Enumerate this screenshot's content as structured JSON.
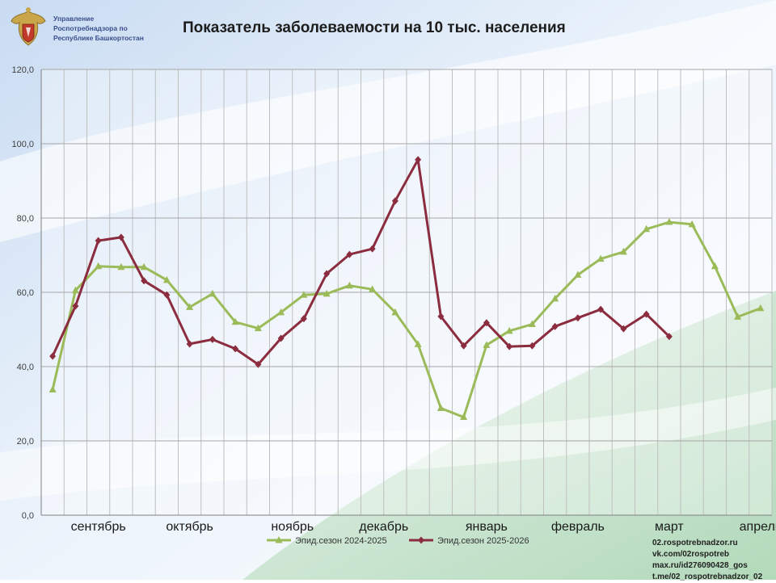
{
  "header": {
    "org_lines": [
      "Управление",
      "Роспотребнадзора по",
      "Республике Башкортостан"
    ],
    "title": "Показатель заболеваемости на 10 тыс. населения"
  },
  "footer_links": [
    "02.rospotrebnadzor.ru",
    "vk.com/02rospotreb",
    "max.ru/id276090428_gos",
    "t.me/02_rospotrebnadzor_02"
  ],
  "colors": {
    "series_2024": "#9bbb59",
    "series_2025": "#8b2c3f",
    "grid": "#bfbfbf"
  },
  "chart_data": {
    "type": "line",
    "title": "Показатель заболеваемости на 10 тыс. населения",
    "ylim": [
      0,
      120
    ],
    "y_ticks": [
      "0,0",
      "20,0",
      "40,0",
      "60,0",
      "80,0",
      "100,0",
      "120,0"
    ],
    "x_count": 32,
    "month_labels": [
      {
        "label": "сентябрь",
        "center": 2.5
      },
      {
        "label": "октябрь",
        "center": 6.5
      },
      {
        "label": "ноябрь",
        "center": 11
      },
      {
        "label": "декабрь",
        "center": 15
      },
      {
        "label": "январь",
        "center": 19.5
      },
      {
        "label": "февраль",
        "center": 23.5
      },
      {
        "label": "март",
        "center": 27.5
      },
      {
        "label": "апрель",
        "center": 31.5
      }
    ],
    "legend_placement": "bottom",
    "series": [
      {
        "name": "Эпид.сезон 2024-2025",
        "values": [
          33.8,
          60.5,
          67.0,
          66.8,
          66.8,
          63.3,
          56.0,
          59.6,
          52.0,
          50.3,
          54.6,
          59.3,
          59.6,
          61.8,
          60.8,
          54.6,
          46.0,
          28.8,
          26.4,
          45.8,
          49.6,
          51.4,
          58.3,
          64.7,
          69.0,
          70.9,
          77.0,
          78.9,
          78.3,
          67.0,
          53.4,
          55.7
        ]
      },
      {
        "name": "Эпид.сезон 2025-2026",
        "values": [
          42.8,
          56.3,
          73.9,
          74.8,
          63.1,
          59.3,
          46.1,
          47.3,
          44.8,
          40.6,
          47.6,
          52.9,
          65.0,
          70.2,
          71.7,
          84.6,
          95.7,
          53.5,
          45.6,
          51.8,
          45.4,
          45.6,
          50.8,
          53.1,
          55.4,
          50.2,
          54.1,
          48.1
        ]
      }
    ]
  }
}
